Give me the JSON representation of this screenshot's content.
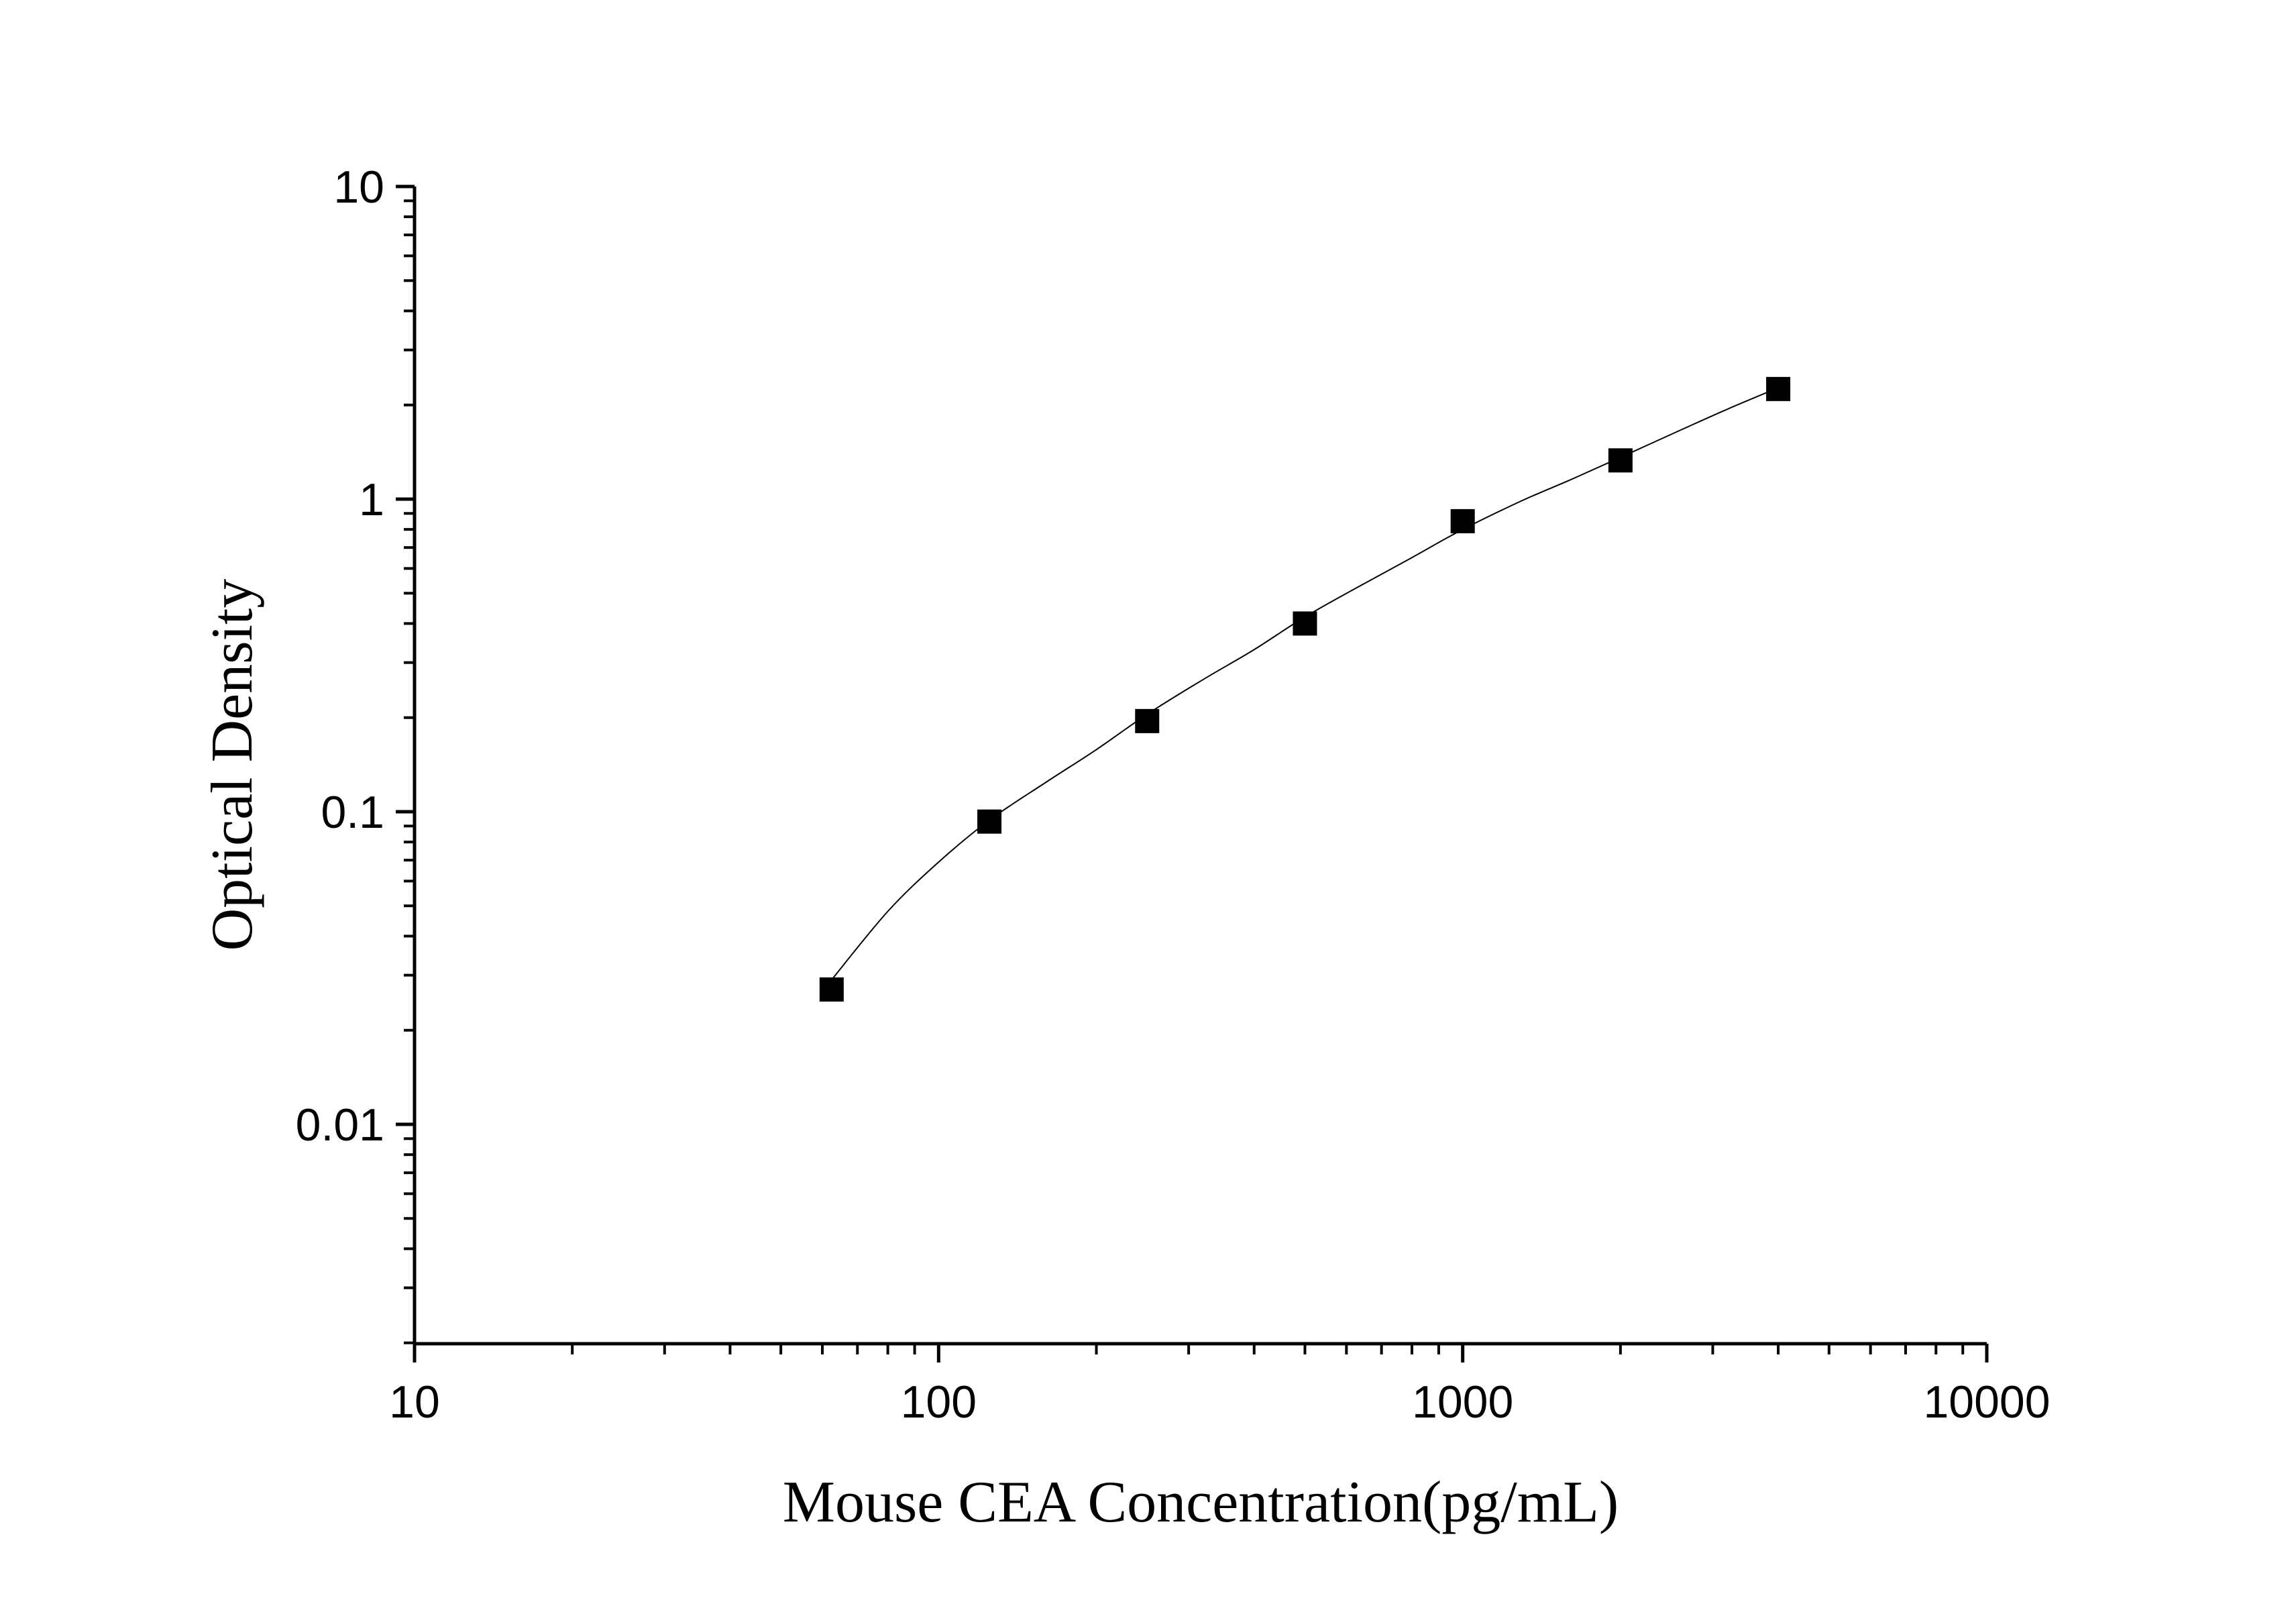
{
  "chart_data": {
    "type": "scatter",
    "xlabel": "Mouse CEA Concentration(pg/mL)",
    "ylabel": "Optical Density",
    "xscale": "log",
    "yscale": "log",
    "xlim": [
      10,
      10000
    ],
    "ylim": [
      0.002,
      10
    ],
    "x_ticks": [
      {
        "value": 10,
        "label": "10"
      },
      {
        "value": 100,
        "label": "100"
      },
      {
        "value": 1000,
        "label": "1000"
      },
      {
        "value": 10000,
        "label": "10000"
      }
    ],
    "y_ticks": [
      {
        "value": 0.01,
        "label": "0.01"
      },
      {
        "value": 0.1,
        "label": "0.1"
      },
      {
        "value": 1,
        "label": "1"
      },
      {
        "value": 10,
        "label": "10"
      }
    ],
    "grid": false,
    "series": [
      {
        "marker": "square",
        "color": "#000000",
        "x": [
          62.5,
          125,
          250,
          500,
          1000,
          2000,
          4000
        ],
        "y": [
          0.027,
          0.093,
          0.195,
          0.4,
          0.85,
          1.33,
          2.25
        ]
      }
    ],
    "fit_curve": {
      "color": "#000000",
      "x": [
        62.5,
        80,
        100,
        125,
        160,
        200,
        250,
        320,
        400,
        500,
        640,
        800,
        1000,
        1300,
        1600,
        2000,
        2600,
        3200,
        4000
      ],
      "y": [
        0.029,
        0.048,
        0.069,
        0.094,
        0.124,
        0.158,
        0.205,
        0.265,
        0.33,
        0.42,
        0.53,
        0.65,
        0.8,
        0.99,
        1.15,
        1.36,
        1.66,
        1.94,
        2.27
      ]
    }
  }
}
